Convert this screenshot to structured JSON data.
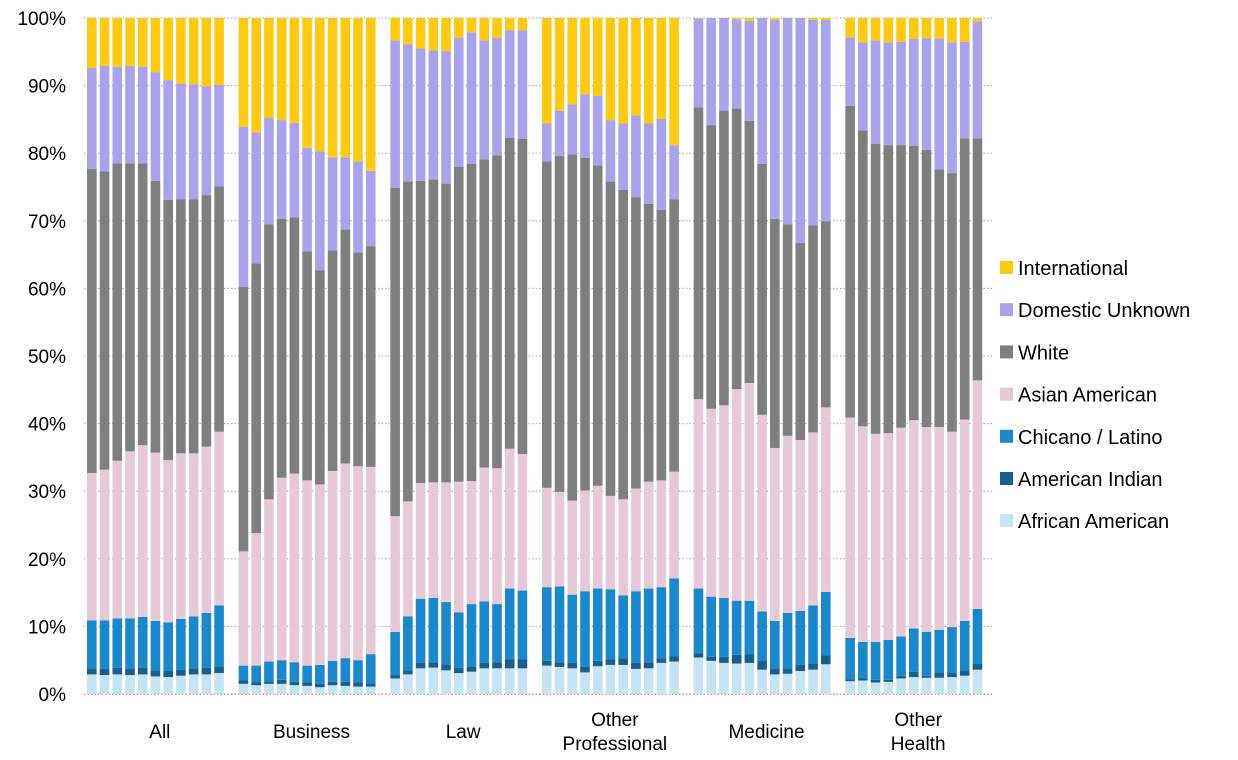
{
  "chart_data": {
    "type": "bar",
    "stacked": true,
    "percent": true,
    "ylim": [
      0,
      100
    ],
    "yticks": [
      "0%",
      "10%",
      "20%",
      "30%",
      "40%",
      "50%",
      "60%",
      "70%",
      "80%",
      "90%",
      "100%"
    ],
    "grid": "horizontal dotted",
    "legend_position": "right",
    "colors": {
      "African American": "#c5e3f3",
      "American Indian": "#1a5e8c",
      "Chicano / Latino": "#1c88cc",
      "Asian American": "#e6c9d6",
      "White": "#7f7f7f",
      "Domestic Unknown": "#a8a3ea",
      "International": "#fdc913"
    },
    "legend": [
      "International",
      "Domestic Unknown",
      "White",
      "Asian American",
      "Chicano / Latino",
      "American Indian",
      "African American"
    ],
    "groups": [
      {
        "label": "All",
        "series": {
          "African American": [
            2.9,
            2.8,
            2.9,
            2.8,
            2.9,
            2.6,
            2.5,
            2.7,
            2.9,
            2.9,
            3.1
          ],
          "American Indian": [
            0.9,
            0.9,
            1.0,
            1.0,
            1.0,
            0.9,
            0.9,
            0.9,
            0.9,
            1.0,
            1.0
          ],
          "Chicano / Latino": [
            7.1,
            7.2,
            7.3,
            7.4,
            7.5,
            7.3,
            7.2,
            7.5,
            7.7,
            8.1,
            9.0
          ],
          "Asian American": [
            21.8,
            22.3,
            23.3,
            24.7,
            25.4,
            24.9,
            24.0,
            24.5,
            24.1,
            24.6,
            25.7
          ],
          "White": [
            45.0,
            44.1,
            44.0,
            42.6,
            41.7,
            40.2,
            38.5,
            37.6,
            37.6,
            37.2,
            36.3
          ],
          "Domestic Unknown": [
            14.9,
            15.6,
            14.3,
            14.4,
            14.3,
            16.1,
            17.7,
            17.1,
            17.0,
            16.1,
            15.0
          ],
          "International": [
            7.4,
            7.1,
            7.2,
            7.1,
            7.2,
            8.0,
            9.2,
            9.7,
            9.8,
            10.1,
            9.9
          ]
        }
      },
      {
        "label": "Business",
        "series": {
          "African American": [
            1.5,
            1.3,
            1.5,
            1.5,
            1.3,
            1.2,
            1.0,
            1.3,
            1.2,
            1.1,
            1.1
          ],
          "American Indian": [
            0.5,
            0.4,
            0.4,
            0.6,
            0.5,
            0.5,
            0.5,
            0.5,
            0.6,
            0.6,
            0.5
          ],
          "Chicano / Latino": [
            2.2,
            2.5,
            2.9,
            2.9,
            2.9,
            2.5,
            2.8,
            3.1,
            3.5,
            3.3,
            4.3
          ],
          "Asian American": [
            16.9,
            19.6,
            24.0,
            27.0,
            27.9,
            27.4,
            26.7,
            28.1,
            28.8,
            28.7,
            27.7
          ],
          "White": [
            39.1,
            39.9,
            40.7,
            38.3,
            37.9,
            33.9,
            31.7,
            32.6,
            34.6,
            31.6,
            32.6
          ],
          "Domestic Unknown": [
            23.7,
            19.4,
            15.7,
            14.6,
            14.0,
            15.3,
            17.6,
            13.8,
            10.7,
            13.5,
            11.2
          ],
          "International": [
            16.1,
            16.9,
            14.8,
            15.1,
            15.5,
            19.2,
            19.7,
            20.6,
            20.6,
            21.2,
            22.6
          ]
        }
      },
      {
        "label": "Law",
        "series": {
          "African American": [
            2.3,
            2.9,
            3.8,
            3.9,
            3.5,
            3.1,
            3.3,
            3.8,
            3.8,
            3.8,
            3.8
          ],
          "American Indian": [
            0.5,
            0.5,
            0.8,
            0.8,
            0.9,
            0.8,
            0.8,
            0.8,
            0.9,
            1.3,
            1.3
          ],
          "Chicano / Latino": [
            6.4,
            8.1,
            9.5,
            9.5,
            9.2,
            8.2,
            9.2,
            9.1,
            8.6,
            10.5,
            10.2
          ],
          "Asian American": [
            17.1,
            17.0,
            17.1,
            17.1,
            17.7,
            19.3,
            18.2,
            19.8,
            20.1,
            20.7,
            20.2
          ],
          "White": [
            48.6,
            47.3,
            44.7,
            44.8,
            44.2,
            46.6,
            46.9,
            45.6,
            46.3,
            46.0,
            46.6
          ],
          "Domestic Unknown": [
            21.8,
            20.3,
            19.6,
            19.1,
            19.6,
            19.1,
            19.5,
            17.6,
            17.4,
            15.9,
            16.1
          ],
          "International": [
            3.3,
            3.9,
            4.5,
            4.8,
            4.9,
            2.9,
            2.1,
            3.3,
            2.9,
            1.8,
            1.8
          ]
        }
      },
      {
        "label": "Other Professional",
        "series": {
          "African American": [
            4.2,
            4.0,
            3.8,
            3.2,
            4.1,
            4.3,
            4.3,
            3.7,
            3.8,
            4.6,
            4.8
          ],
          "American Indian": [
            0.7,
            0.7,
            0.8,
            0.8,
            0.8,
            0.8,
            1.0,
            0.9,
            0.9,
            0.7,
            0.8
          ],
          "Chicano / Latino": [
            10.9,
            11.2,
            10.1,
            11.2,
            10.7,
            10.4,
            9.3,
            10.6,
            10.9,
            10.5,
            11.5
          ],
          "Asian American": [
            14.7,
            14.0,
            13.9,
            14.9,
            15.2,
            13.8,
            14.2,
            15.2,
            15.8,
            15.8,
            15.8
          ],
          "White": [
            48.3,
            49.7,
            51.2,
            49.2,
            47.4,
            46.5,
            45.8,
            43.1,
            41.1,
            40.0,
            40.3
          ],
          "Domestic Unknown": [
            5.6,
            6.7,
            7.4,
            9.4,
            10.3,
            9.1,
            9.8,
            12.1,
            11.9,
            13.5,
            8.0
          ],
          "International": [
            15.6,
            13.7,
            12.8,
            11.3,
            11.5,
            15.1,
            15.6,
            14.4,
            15.6,
            14.9,
            18.8
          ]
        }
      },
      {
        "label": "Medicine",
        "series": {
          "African American": [
            5.4,
            4.9,
            4.6,
            4.5,
            4.6,
            3.6,
            2.9,
            3.0,
            3.4,
            3.6,
            4.4
          ],
          "American Indian": [
            0.6,
            0.6,
            0.9,
            1.3,
            1.3,
            1.4,
            0.9,
            0.8,
            0.9,
            0.9,
            1.3
          ],
          "Chicano / Latino": [
            9.6,
            8.9,
            8.7,
            8.0,
            7.9,
            7.2,
            7.0,
            8.2,
            8.0,
            8.6,
            9.4
          ],
          "Asian American": [
            28.0,
            27.8,
            28.5,
            31.3,
            32.2,
            29.1,
            25.6,
            26.2,
            25.3,
            25.6,
            27.3
          ],
          "White": [
            43.2,
            41.9,
            43.6,
            41.5,
            38.8,
            37.1,
            33.9,
            31.3,
            29.2,
            30.6,
            27.5
          ],
          "Domestic Unknown": [
            13.1,
            15.9,
            13.7,
            13.2,
            14.8,
            21.6,
            29.4,
            30.5,
            33.3,
            30.4,
            29.8
          ],
          "International": [
            0.1,
            0.0,
            0.0,
            0.2,
            0.4,
            0.0,
            0.3,
            0.0,
            0.0,
            0.3,
            0.3
          ]
        }
      },
      {
        "label": "Other Health",
        "series": {
          "African American": [
            1.9,
            2.0,
            1.7,
            1.8,
            2.3,
            2.5,
            2.4,
            2.4,
            2.5,
            2.7,
            3.6
          ],
          "American Indian": [
            0.3,
            0.3,
            0.4,
            0.3,
            0.4,
            0.8,
            0.3,
            0.8,
            0.6,
            0.8,
            0.9
          ],
          "Chicano / Latino": [
            6.1,
            5.4,
            5.6,
            5.9,
            5.8,
            6.4,
            6.5,
            6.3,
            6.8,
            7.3,
            8.1
          ],
          "Asian American": [
            32.6,
            31.9,
            30.8,
            30.6,
            30.9,
            30.8,
            30.3,
            30.0,
            28.9,
            29.8,
            33.8
          ],
          "White": [
            46.1,
            43.8,
            42.9,
            42.6,
            41.8,
            40.6,
            41.0,
            38.1,
            38.2,
            41.6,
            35.8
          ],
          "Domestic Unknown": [
            10.1,
            13.0,
            15.3,
            15.2,
            15.3,
            15.8,
            16.5,
            19.4,
            19.4,
            14.3,
            17.3
          ],
          "International": [
            2.9,
            3.6,
            3.3,
            3.6,
            3.5,
            3.1,
            3.0,
            3.0,
            3.6,
            3.5,
            0.5
          ]
        }
      }
    ]
  }
}
